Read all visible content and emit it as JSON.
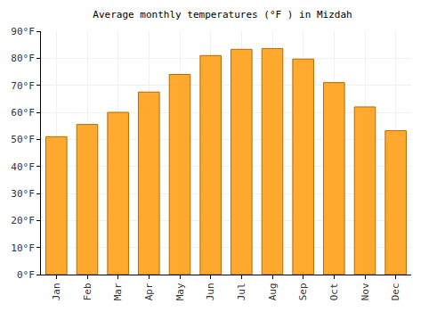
{
  "chart_data": {
    "type": "bar",
    "title": "Average monthly temperatures (°F ) in Mizdah",
    "categories": [
      "Jan",
      "Feb",
      "Mar",
      "Apr",
      "May",
      "Jun",
      "Jul",
      "Aug",
      "Sep",
      "Oct",
      "Nov",
      "Dec"
    ],
    "values": [
      51,
      55.5,
      60,
      67.5,
      74,
      81,
      83.3,
      83.6,
      79.7,
      71,
      62,
      53.2
    ],
    "color": "#ffa92e",
    "ylim": [
      0,
      90
    ],
    "yticks": [
      {
        "value": 0,
        "label": "0°F"
      },
      {
        "value": 10,
        "label": "10°F"
      },
      {
        "value": 20,
        "label": "20°F"
      },
      {
        "value": 30,
        "label": "30°F"
      },
      {
        "value": 40,
        "label": "40°F"
      },
      {
        "value": 50,
        "label": "50°F"
      },
      {
        "value": 60,
        "label": "60°F"
      },
      {
        "value": 70,
        "label": "70°F"
      },
      {
        "value": 80,
        "label": "80°F"
      },
      {
        "value": 90,
        "label": "90°F"
      }
    ],
    "grid": true
  }
}
